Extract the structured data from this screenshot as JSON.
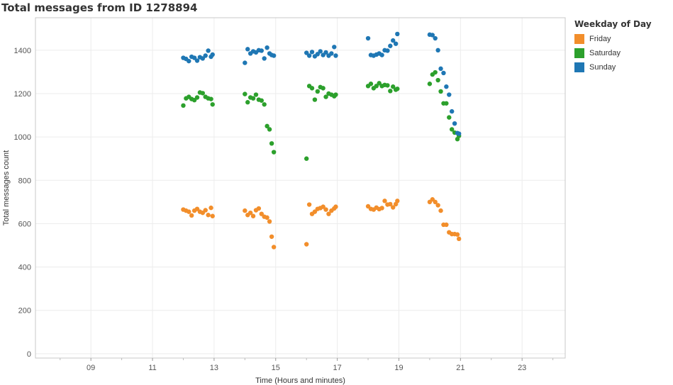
{
  "page": {
    "title": "Total messages from ID 1278894"
  },
  "colors": {
    "Friday": "#f28e2b",
    "Saturday": "#2ca02c",
    "Sunday": "#1f77b4",
    "grid": "#ececec",
    "axis": "#c8c8c8"
  },
  "chart_data": {
    "type": "scatter",
    "title": "Total messages from ID 1278894",
    "xlabel": "Time (Hours and minutes)",
    "ylabel": "Total messages count",
    "xlim": [
      7.2,
      24.4
    ],
    "ylim": [
      -20,
      1550
    ],
    "x_ticks": [
      9,
      11,
      13,
      15,
      17,
      19,
      21,
      23
    ],
    "x_tick_labels": [
      "09",
      "11",
      "13",
      "15",
      "17",
      "19",
      "21",
      "23"
    ],
    "y_ticks": [
      0,
      200,
      400,
      600,
      800,
      1000,
      1200,
      1400
    ],
    "y_tick_labels": [
      "0",
      "200",
      "400",
      "600",
      "800",
      "1000",
      "1200",
      "1400"
    ],
    "grid": true,
    "legend": {
      "title": "Weekday of Day",
      "position": "right",
      "entries": [
        "Friday",
        "Saturday",
        "Sunday"
      ]
    },
    "series": [
      {
        "name": "Friday",
        "points": [
          [
            12.0,
            665
          ],
          [
            12.09,
            660
          ],
          [
            12.18,
            655
          ],
          [
            12.27,
            638
          ],
          [
            12.36,
            660
          ],
          [
            12.45,
            668
          ],
          [
            12.54,
            655
          ],
          [
            12.63,
            650
          ],
          [
            12.72,
            662
          ],
          [
            12.81,
            640
          ],
          [
            12.9,
            673
          ],
          [
            12.95,
            635
          ],
          [
            14.0,
            660
          ],
          [
            14.09,
            640
          ],
          [
            14.18,
            650
          ],
          [
            14.27,
            635
          ],
          [
            14.36,
            662
          ],
          [
            14.45,
            670
          ],
          [
            14.54,
            645
          ],
          [
            14.63,
            632
          ],
          [
            14.72,
            628
          ],
          [
            14.8,
            610
          ],
          [
            14.87,
            540
          ],
          [
            14.94,
            492
          ],
          [
            16.0,
            505
          ],
          [
            16.09,
            688
          ],
          [
            16.18,
            645
          ],
          [
            16.27,
            655
          ],
          [
            16.36,
            668
          ],
          [
            16.45,
            672
          ],
          [
            16.54,
            678
          ],
          [
            16.63,
            665
          ],
          [
            16.72,
            645
          ],
          [
            16.81,
            660
          ],
          [
            16.9,
            670
          ],
          [
            16.95,
            678
          ],
          [
            18.0,
            680
          ],
          [
            18.09,
            668
          ],
          [
            18.18,
            665
          ],
          [
            18.27,
            674
          ],
          [
            18.36,
            667
          ],
          [
            18.45,
            672
          ],
          [
            18.54,
            705
          ],
          [
            18.63,
            688
          ],
          [
            18.72,
            690
          ],
          [
            18.81,
            675
          ],
          [
            18.9,
            690
          ],
          [
            18.95,
            705
          ],
          [
            20.0,
            700
          ],
          [
            20.09,
            712
          ],
          [
            20.18,
            700
          ],
          [
            20.27,
            685
          ],
          [
            20.36,
            660
          ],
          [
            20.45,
            595
          ],
          [
            20.54,
            595
          ],
          [
            20.63,
            560
          ],
          [
            20.72,
            552
          ],
          [
            20.81,
            552
          ],
          [
            20.9,
            550
          ],
          [
            20.95,
            530
          ]
        ]
      },
      {
        "name": "Saturday",
        "points": [
          [
            12.0,
            1145
          ],
          [
            12.09,
            1178
          ],
          [
            12.18,
            1185
          ],
          [
            12.27,
            1175
          ],
          [
            12.36,
            1170
          ],
          [
            12.45,
            1182
          ],
          [
            12.54,
            1205
          ],
          [
            12.63,
            1202
          ],
          [
            12.72,
            1185
          ],
          [
            12.81,
            1178
          ],
          [
            12.9,
            1175
          ],
          [
            12.95,
            1150
          ],
          [
            14.0,
            1198
          ],
          [
            14.09,
            1160
          ],
          [
            14.18,
            1182
          ],
          [
            14.27,
            1178
          ],
          [
            14.36,
            1195
          ],
          [
            14.45,
            1172
          ],
          [
            14.54,
            1168
          ],
          [
            14.63,
            1150
          ],
          [
            14.72,
            1050
          ],
          [
            14.8,
            1035
          ],
          [
            14.87,
            970
          ],
          [
            14.94,
            930
          ],
          [
            16.0,
            900
          ],
          [
            16.09,
            1235
          ],
          [
            16.18,
            1225
          ],
          [
            16.27,
            1172
          ],
          [
            16.36,
            1210
          ],
          [
            16.45,
            1230
          ],
          [
            16.54,
            1225
          ],
          [
            16.63,
            1185
          ],
          [
            16.72,
            1200
          ],
          [
            16.81,
            1195
          ],
          [
            16.9,
            1188
          ],
          [
            16.95,
            1195
          ],
          [
            18.0,
            1235
          ],
          [
            18.09,
            1245
          ],
          [
            18.18,
            1225
          ],
          [
            18.27,
            1235
          ],
          [
            18.36,
            1248
          ],
          [
            18.45,
            1235
          ],
          [
            18.54,
            1240
          ],
          [
            18.63,
            1238
          ],
          [
            18.72,
            1212
          ],
          [
            18.81,
            1232
          ],
          [
            18.9,
            1218
          ],
          [
            18.95,
            1222
          ],
          [
            20.0,
            1245
          ],
          [
            20.09,
            1288
          ],
          [
            20.18,
            1298
          ],
          [
            20.27,
            1262
          ],
          [
            20.36,
            1210
          ],
          [
            20.45,
            1155
          ],
          [
            20.54,
            1155
          ],
          [
            20.63,
            1090
          ],
          [
            20.72,
            1035
          ],
          [
            20.81,
            1020
          ],
          [
            20.9,
            990
          ],
          [
            20.95,
            1005
          ]
        ]
      },
      {
        "name": "Sunday",
        "points": [
          [
            12.0,
            1365
          ],
          [
            12.09,
            1360
          ],
          [
            12.18,
            1350
          ],
          [
            12.27,
            1370
          ],
          [
            12.36,
            1365
          ],
          [
            12.45,
            1352
          ],
          [
            12.54,
            1368
          ],
          [
            12.63,
            1362
          ],
          [
            12.72,
            1375
          ],
          [
            12.81,
            1398
          ],
          [
            12.9,
            1370
          ],
          [
            12.95,
            1380
          ],
          [
            14.0,
            1342
          ],
          [
            14.09,
            1405
          ],
          [
            14.18,
            1385
          ],
          [
            14.27,
            1395
          ],
          [
            14.36,
            1390
          ],
          [
            14.45,
            1400
          ],
          [
            14.54,
            1398
          ],
          [
            14.63,
            1362
          ],
          [
            14.72,
            1412
          ],
          [
            14.8,
            1385
          ],
          [
            14.87,
            1378
          ],
          [
            14.94,
            1375
          ],
          [
            16.0,
            1388
          ],
          [
            16.09,
            1375
          ],
          [
            16.18,
            1392
          ],
          [
            16.27,
            1372
          ],
          [
            16.36,
            1382
          ],
          [
            16.45,
            1395
          ],
          [
            16.54,
            1378
          ],
          [
            16.63,
            1390
          ],
          [
            16.72,
            1375
          ],
          [
            16.81,
            1385
          ],
          [
            16.9,
            1415
          ],
          [
            16.95,
            1375
          ],
          [
            18.0,
            1455
          ],
          [
            18.09,
            1378
          ],
          [
            18.18,
            1375
          ],
          [
            18.27,
            1380
          ],
          [
            18.36,
            1385
          ],
          [
            18.45,
            1378
          ],
          [
            18.54,
            1400
          ],
          [
            18.63,
            1398
          ],
          [
            18.72,
            1420
          ],
          [
            18.81,
            1445
          ],
          [
            18.9,
            1430
          ],
          [
            18.95,
            1475
          ],
          [
            20.0,
            1472
          ],
          [
            20.09,
            1470
          ],
          [
            20.18,
            1455
          ],
          [
            20.27,
            1400
          ],
          [
            20.36,
            1315
          ],
          [
            20.45,
            1295
          ],
          [
            20.54,
            1232
          ],
          [
            20.63,
            1195
          ],
          [
            20.72,
            1118
          ],
          [
            20.81,
            1062
          ],
          [
            20.9,
            1018
          ],
          [
            20.95,
            1015
          ]
        ]
      }
    ]
  }
}
